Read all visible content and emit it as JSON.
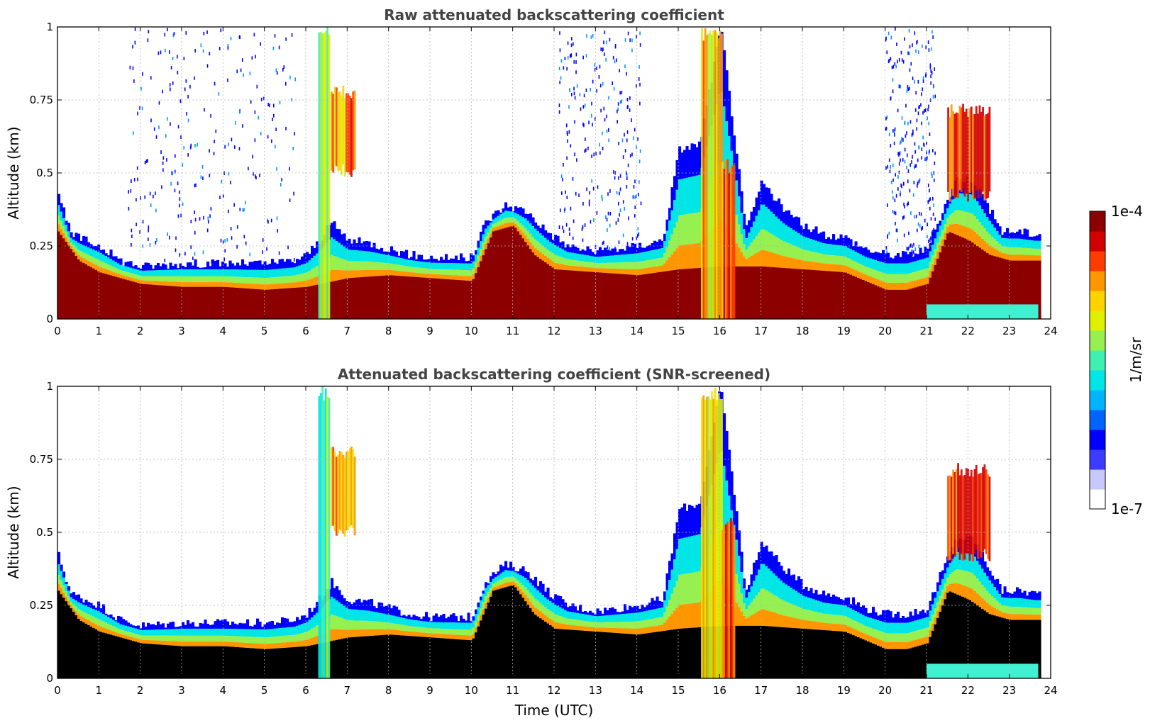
{
  "colors": {
    "colormap": [
      "#ffffff",
      "#c8c8ff",
      "#3c3cff",
      "#0000ff",
      "#0064ff",
      "#00b4ff",
      "#00e6e6",
      "#40f0b0",
      "#96f050",
      "#dcf000",
      "#ffd200",
      "#ff9600",
      "#ff3c00",
      "#d20000",
      "#8c0000"
    ],
    "saturated": "#000000",
    "grid": "#b4b4b4"
  },
  "chart_data": [
    {
      "type": "heatmap",
      "title": "Raw attenuated backscattering coefficient",
      "ylabel": "Altitude (km)",
      "xlabel": "",
      "xlim": [
        0,
        24
      ],
      "ylim": [
        0,
        1
      ],
      "x_ticks": [
        "0",
        "1",
        "2",
        "3",
        "4",
        "5",
        "6",
        "7",
        "8",
        "9",
        "10",
        "11",
        "12",
        "13",
        "14",
        "15",
        "16",
        "17",
        "18",
        "19",
        "20",
        "21",
        "22",
        "23",
        "24"
      ],
      "y_ticks": [
        "0",
        "0.25",
        "0.5",
        "0.75",
        "1"
      ],
      "grid": true,
      "snr_screened": false,
      "boundary_layer_top_km": [
        [
          0,
          0.42
        ],
        [
          0.3,
          0.29
        ],
        [
          1,
          0.25
        ],
        [
          1.5,
          0.2
        ],
        [
          2,
          0.18
        ],
        [
          3,
          0.19
        ],
        [
          4,
          0.19
        ],
        [
          5,
          0.19
        ],
        [
          5.7,
          0.2
        ],
        [
          6,
          0.22
        ],
        [
          6.3,
          0.27
        ],
        [
          6.6,
          0.33
        ],
        [
          7,
          0.27
        ],
        [
          7.5,
          0.26
        ],
        [
          8,
          0.24
        ],
        [
          8.5,
          0.22
        ],
        [
          9,
          0.21
        ],
        [
          9.5,
          0.21
        ],
        [
          10,
          0.21
        ],
        [
          10.3,
          0.33
        ],
        [
          10.8,
          0.39
        ],
        [
          11.3,
          0.37
        ],
        [
          11.8,
          0.3
        ],
        [
          12.3,
          0.25
        ],
        [
          13,
          0.23
        ],
        [
          14,
          0.25
        ],
        [
          14.6,
          0.27
        ],
        [
          15,
          0.58
        ],
        [
          15.5,
          0.6
        ],
        [
          16,
          1.0
        ],
        [
          16.4,
          0.55
        ],
        [
          16.6,
          0.3
        ],
        [
          17,
          0.47
        ],
        [
          17.5,
          0.38
        ],
        [
          18,
          0.32
        ],
        [
          18.5,
          0.29
        ],
        [
          19,
          0.28
        ],
        [
          19.5,
          0.24
        ],
        [
          20,
          0.22
        ],
        [
          20.5,
          0.22
        ],
        [
          21,
          0.24
        ],
        [
          21.3,
          0.35
        ],
        [
          21.7,
          0.48
        ],
        [
          22.1,
          0.48
        ],
        [
          22.4,
          0.4
        ],
        [
          22.8,
          0.3
        ],
        [
          23.2,
          0.3
        ],
        [
          23.6,
          0.29
        ],
        [
          23.7,
          0.29
        ]
      ],
      "aerosol_core_top_km": [
        [
          0,
          0.3
        ],
        [
          0.5,
          0.2
        ],
        [
          1,
          0.16
        ],
        [
          2,
          0.12
        ],
        [
          3,
          0.11
        ],
        [
          4,
          0.11
        ],
        [
          5,
          0.1
        ],
        [
          6,
          0.11
        ],
        [
          7,
          0.14
        ],
        [
          8,
          0.15
        ],
        [
          9,
          0.14
        ],
        [
          10,
          0.13
        ],
        [
          10.5,
          0.3
        ],
        [
          11,
          0.32
        ],
        [
          11.5,
          0.22
        ],
        [
          12,
          0.17
        ],
        [
          13,
          0.16
        ],
        [
          14,
          0.15
        ],
        [
          15,
          0.17
        ],
        [
          16,
          0.18
        ],
        [
          17,
          0.18
        ],
        [
          18,
          0.17
        ],
        [
          19,
          0.16
        ],
        [
          20,
          0.1
        ],
        [
          20.5,
          0.1
        ],
        [
          21,
          0.12
        ],
        [
          21.5,
          0.3
        ],
        [
          22,
          0.27
        ],
        [
          22.5,
          0.22
        ],
        [
          23,
          0.2
        ],
        [
          23.7,
          0.2
        ]
      ],
      "elevated_layers": [
        {
          "x_start": 6.3,
          "x_end": 6.55,
          "alt_bottom": 0.0,
          "alt_top": 1.0,
          "level": 0.55
        },
        {
          "x_start": 6.6,
          "x_end": 7.2,
          "alt_bottom": 0.53,
          "alt_top": 0.8,
          "level": 0.78
        },
        {
          "x_start": 15.55,
          "x_end": 16.05,
          "alt_bottom": 0.0,
          "alt_top": 1.0,
          "level": 0.7
        },
        {
          "x_start": 16.05,
          "x_end": 16.35,
          "alt_bottom": 0.0,
          "alt_top": 0.55,
          "level": 0.85
        },
        {
          "x_start": 21.5,
          "x_end": 22.5,
          "alt_bottom": 0.45,
          "alt_top": 0.74,
          "level": 0.9
        }
      ],
      "noise_periods_utc": [
        [
          1.7,
          5.8
        ],
        [
          12.1,
          14.1
        ],
        [
          20.0,
          21.2
        ]
      ]
    },
    {
      "type": "heatmap",
      "title": "Attenuated backscattering coefficient (SNR-screened)",
      "ylabel": "Altitude (km)",
      "xlabel": "Time (UTC)",
      "xlim": [
        0,
        24
      ],
      "ylim": [
        0,
        1
      ],
      "x_ticks": [
        "0",
        "1",
        "2",
        "3",
        "4",
        "5",
        "6",
        "7",
        "8",
        "9",
        "10",
        "11",
        "12",
        "13",
        "14",
        "15",
        "16",
        "17",
        "18",
        "19",
        "20",
        "21",
        "22",
        "23",
        "24"
      ],
      "y_ticks": [
        "0",
        "0.25",
        "0.5",
        "0.75",
        "1"
      ],
      "grid": true,
      "snr_screened": true
    }
  ],
  "colorbar": {
    "label": "1/m/sr",
    "max_label": "1e-4",
    "min_label": "1e-7"
  }
}
